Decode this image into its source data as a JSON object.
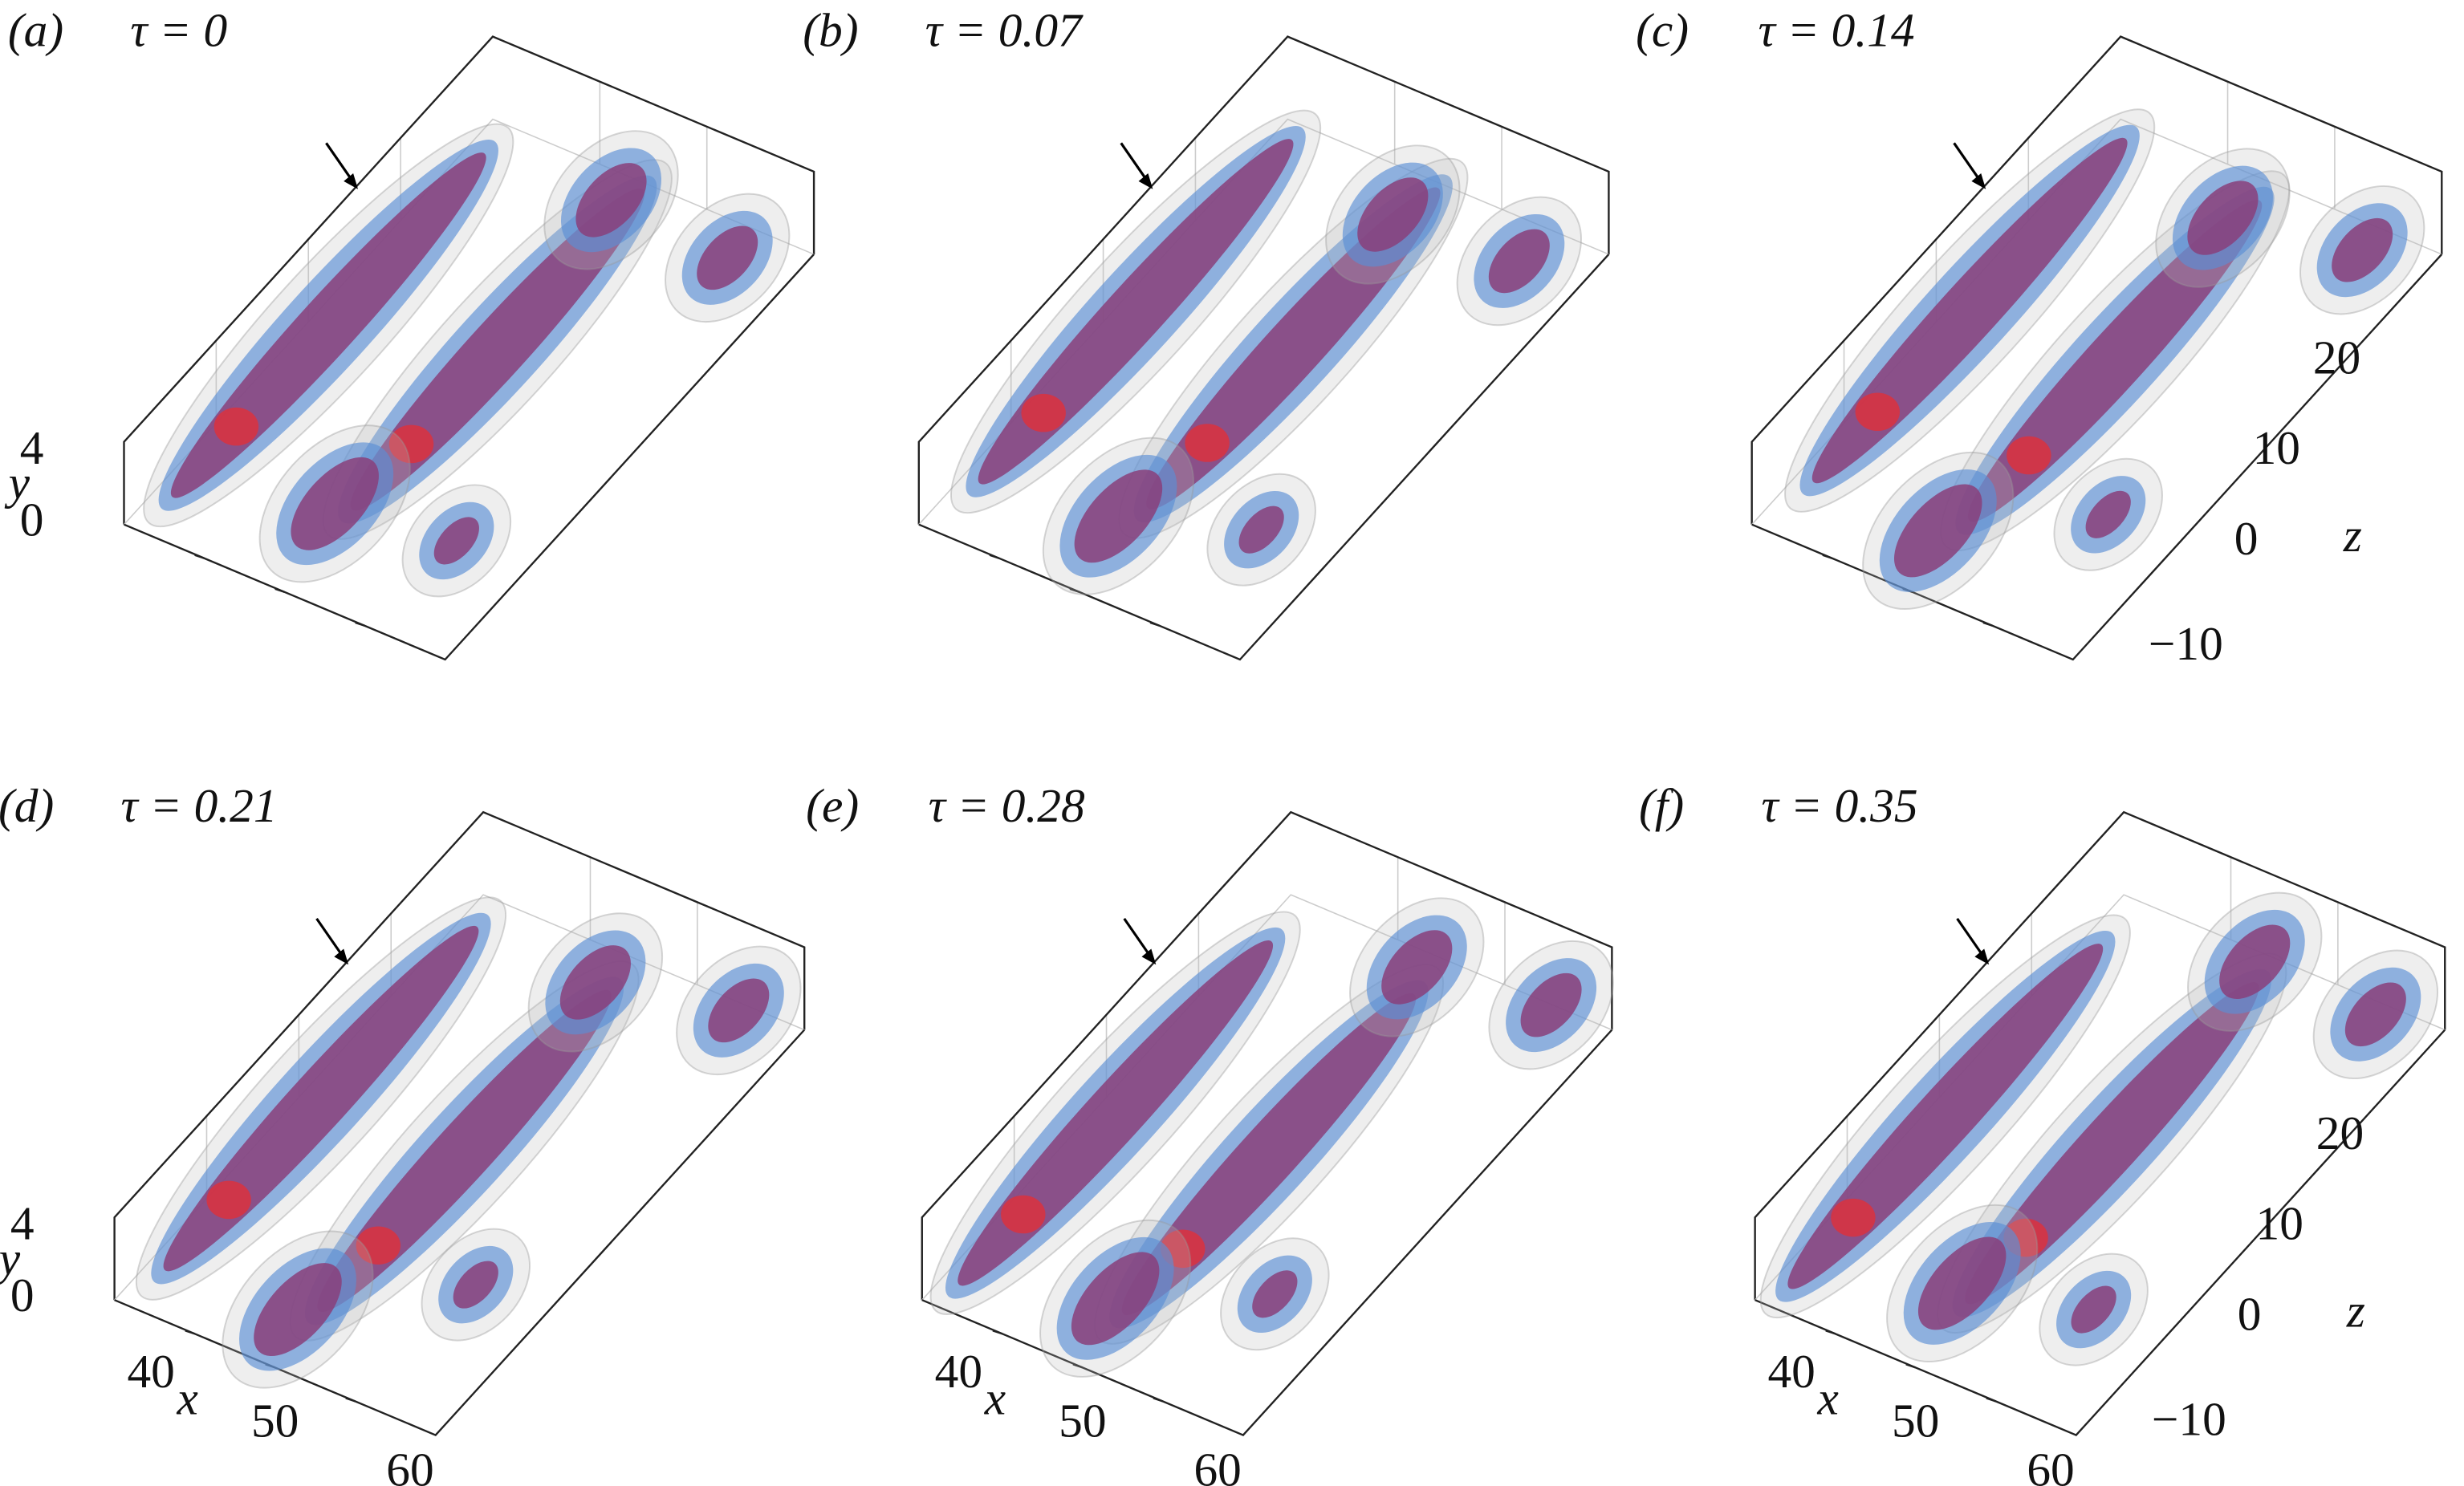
{
  "panels": [
    {
      "label": "(a)",
      "tau": "τ = 0"
    },
    {
      "label": "(b)",
      "tau": "τ = 0.07"
    },
    {
      "label": "(c)",
      "tau": "τ = 0.14"
    },
    {
      "label": "(d)",
      "tau": "τ = 0.21"
    },
    {
      "label": "(e)",
      "tau": "τ = 0.28"
    },
    {
      "label": "(f)",
      "tau": "τ = 0.35"
    }
  ],
  "axes": {
    "x_label": "x",
    "y_label": "y",
    "z_label": "z",
    "x_ticks": [
      "40",
      "50",
      "60"
    ],
    "y_ticks": [
      "0",
      "4"
    ],
    "z_ticks": [
      "−10",
      "0",
      "10",
      "20"
    ]
  }
}
